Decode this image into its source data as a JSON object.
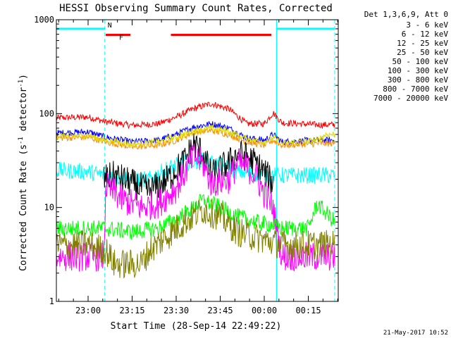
{
  "chart_data": {
    "type": "line",
    "title": "HESSI Observing Summary Count Rates, Corrected",
    "xlabel": "Start Time (28-Sep-14 22:49:22)",
    "ylabel_main": "Corrected Count Rate (s",
    "ylabel_sup1": "-1",
    "ylabel_mid": " detector",
    "ylabel_sup2": "-1",
    "ylabel_end": ")",
    "yscale": "log",
    "ylim": [
      1,
      1000
    ],
    "xlim": [
      22.82,
      24.42
    ],
    "yticks": [
      {
        "value": 1,
        "label": "1"
      },
      {
        "value": 10,
        "label": "10"
      },
      {
        "value": 100,
        "label": "100"
      },
      {
        "value": 1000,
        "label": "1000"
      }
    ],
    "xticks": [
      {
        "value": 23.0,
        "label": "23:00"
      },
      {
        "value": 23.25,
        "label": "23:15"
      },
      {
        "value": 23.5,
        "label": "23:30"
      },
      {
        "value": 23.75,
        "label": "23:45"
      },
      {
        "value": 24.0,
        "label": "00:00"
      },
      {
        "value": 24.25,
        "label": "00:15"
      }
    ],
    "legend_title": "Det 1,3,6,9, Att 0",
    "legend": [
      {
        "label": "3 - 6 keV",
        "color": "#000000"
      },
      {
        "label": "6 - 12 keV",
        "color": "#ff00ff"
      },
      {
        "label": "12 - 25 keV",
        "color": "#00ff00"
      },
      {
        "label": "25 - 50 keV",
        "color": "#00ffff"
      },
      {
        "label": "50 - 100 keV",
        "color": "#dddd00"
      },
      {
        "label": "100 - 300 keV",
        "color": "#ff0000"
      },
      {
        "label": "300 - 800 keV",
        "color": "#0000ff"
      },
      {
        "label": "800 - 7000 keV",
        "color": "#ff8c00"
      },
      {
        "label": "7000 - 20000 keV",
        "color": "#808000"
      }
    ],
    "vertical_lines": [
      {
        "x": 22.82,
        "style": "solid",
        "color": "#00ffff"
      },
      {
        "x": 23.095,
        "style": "dashed",
        "color": "#00ffff"
      },
      {
        "x": 24.07,
        "style": "solid",
        "color": "#00ffff"
      },
      {
        "x": 24.4,
        "style": "dashed",
        "color": "#00ffff"
      }
    ],
    "flag_bars": [
      {
        "label": "N",
        "color": "#00ffff",
        "y": 800,
        "segments": [
          [
            22.82,
            23.095
          ],
          [
            24.07,
            24.4
          ]
        ]
      },
      {
        "label": "F",
        "color": "#ff0000",
        "y": 690,
        "segments": [
          [
            23.1,
            23.24
          ],
          [
            23.47,
            24.04
          ]
        ]
      }
    ],
    "series": [
      {
        "name": "100 - 300 keV",
        "color": "#ff0000",
        "x": [
          22.82,
          23.0,
          23.1,
          23.25,
          23.4,
          23.5,
          23.6,
          23.7,
          23.8,
          23.9,
          24.0,
          24.05,
          24.1,
          24.3,
          24.4
        ],
        "y": [
          90,
          92,
          82,
          75,
          78,
          92,
          113,
          128,
          112,
          78,
          78,
          102,
          80,
          76,
          76
        ]
      },
      {
        "name": "300 - 800 keV",
        "color": "#0000ff",
        "x": [
          22.82,
          23.0,
          23.1,
          23.25,
          23.4,
          23.5,
          23.6,
          23.7,
          23.8,
          23.9,
          24.0,
          24.05,
          24.1,
          24.3,
          24.4
        ],
        "y": [
          62,
          64,
          56,
          50,
          52,
          60,
          72,
          78,
          70,
          55,
          52,
          60,
          50,
          52,
          52
        ]
      },
      {
        "name": "800 - 7000 keV",
        "color": "#ff8c00",
        "x": [
          22.82,
          23.0,
          23.1,
          23.25,
          23.4,
          23.5,
          23.6,
          23.7,
          23.8,
          23.9,
          24.0,
          24.05,
          24.1,
          24.3,
          24.4
        ],
        "y": [
          55,
          56,
          50,
          44,
          46,
          52,
          64,
          66,
          60,
          50,
          46,
          52,
          46,
          48,
          48
        ]
      },
      {
        "name": "50 - 100 keV",
        "color": "#dddd00",
        "x": [
          22.82,
          23.0,
          23.1,
          23.25,
          23.4,
          23.5,
          23.6,
          23.7,
          23.8,
          23.9,
          24.0,
          24.05,
          24.1,
          24.3,
          24.35,
          24.4
        ],
        "y": [
          58,
          58,
          52,
          47,
          50,
          56,
          66,
          70,
          64,
          54,
          50,
          55,
          48,
          52,
          60,
          60
        ]
      },
      {
        "name": "25 - 50 keV",
        "color": "#00ffff",
        "x": [
          22.82,
          23.0,
          23.1,
          23.25,
          23.35,
          23.45,
          23.55,
          23.65,
          23.75,
          23.85,
          23.95,
          24.05,
          24.15,
          24.3,
          24.4
        ],
        "y": [
          25,
          24,
          22,
          20,
          20,
          26,
          30,
          32,
          28,
          24,
          23,
          22,
          22,
          22,
          22
        ]
      },
      {
        "name": "3 - 6 keV",
        "color": "#000000",
        "x": [
          23.09,
          23.15,
          23.25,
          23.35,
          23.45,
          23.55,
          23.6,
          23.65,
          23.7,
          23.8,
          23.85,
          23.9,
          23.95,
          24.0,
          24.05
        ],
        "y": [
          20,
          22,
          18,
          15,
          20,
          32,
          48,
          38,
          22,
          30,
          38,
          35,
          30,
          24,
          18
        ]
      },
      {
        "name": "6 - 12 keV",
        "color": "#ff00ff",
        "x": [
          22.82,
          23.0,
          23.09,
          23.1,
          23.2,
          23.3,
          23.4,
          23.5,
          23.6,
          23.65,
          23.7,
          23.8,
          23.85,
          23.9,
          23.95,
          24.0,
          24.05,
          24.1,
          24.3,
          24.4
        ],
        "y": [
          3,
          3,
          3,
          17,
          12,
          10,
          11,
          16,
          35,
          30,
          18,
          20,
          30,
          27,
          22,
          14,
          10,
          3,
          3,
          3
        ]
      },
      {
        "name": "12 - 25 keV",
        "color": "#00ff00",
        "x": [
          22.82,
          23.0,
          23.1,
          23.25,
          23.4,
          23.5,
          23.6,
          23.65,
          23.75,
          23.85,
          23.95,
          24.05,
          24.1,
          24.25,
          24.3,
          24.4
        ],
        "y": [
          6,
          6,
          6,
          5.5,
          6,
          7.5,
          10,
          12,
          10,
          8,
          7,
          6.5,
          6,
          6,
          11,
          7
        ]
      },
      {
        "name": "7000 - 20000 keV",
        "color": "#808000",
        "x": [
          22.82,
          23.0,
          23.1,
          23.15,
          23.3,
          23.35,
          23.45,
          23.55,
          23.65,
          23.75,
          23.85,
          24.0,
          24.1,
          24.25,
          24.4
        ],
        "y": [
          4,
          4,
          3.5,
          2.5,
          2.5,
          3.5,
          5,
          7,
          9.5,
          8,
          5.5,
          4.5,
          4,
          4,
          4
        ]
      }
    ]
  },
  "footer": {
    "timestamp": "21-May-2017 10:52"
  }
}
